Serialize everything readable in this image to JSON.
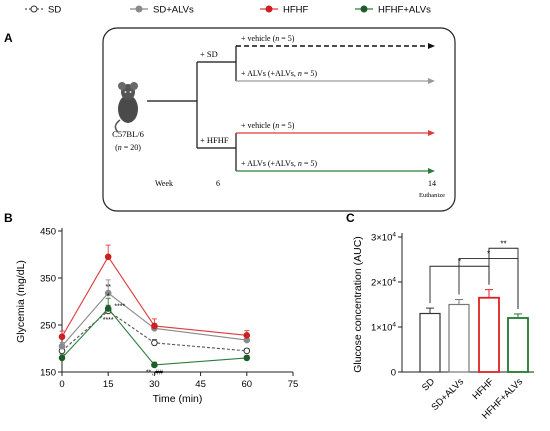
{
  "legend": {
    "items": [
      {
        "label": "SD",
        "line_color": "#555555",
        "marker": "open",
        "dashed": true
      },
      {
        "label": "SD+ALVs",
        "line_color": "#8a8a8a",
        "marker": "#8a8a8a",
        "dashed": false
      },
      {
        "label": "HFHF",
        "line_color": "#e03a3a",
        "marker": "#cc1f1f",
        "dashed": false
      },
      {
        "label": "HFHF+ALVs",
        "line_color": "#2e7d3b",
        "marker": "#1f5c28",
        "dashed": false
      }
    ]
  },
  "panel_a": {
    "label": "A",
    "mouse_label": "C57BL/6",
    "mouse_n_prefix": "(",
    "mouse_n_var": "n",
    "mouse_n_suffix": " = 20)",
    "week_label": "Week",
    "branch_sd": "+ SD",
    "branch_hfhf": "+ HFHF",
    "week_6": "6",
    "week_14": "14",
    "euthanize": "Euthanize",
    "arms": [
      {
        "prefix": "+ vehicle (",
        "var": "n",
        "suffix": " = 5)",
        "color": "#111111",
        "dashed": true
      },
      {
        "prefix": "+ ALVs (+ALVs, ",
        "var": "n",
        "suffix": " = 5)",
        "color": "#9a9a9a",
        "dashed": false
      },
      {
        "prefix": "+ vehicle (",
        "var": "n",
        "suffix": " = 5)",
        "color": "#e03a3a",
        "dashed": false
      },
      {
        "prefix": "+ ALVs (+ALVs, ",
        "var": "n",
        "suffix": " = 5)",
        "color": "#2e7d3b",
        "dashed": false
      }
    ]
  },
  "chart_data": [
    {
      "panel": "B",
      "type": "line",
      "xlabel": "Time (min)",
      "ylabel": "Glycemia (mg/dL)",
      "xlim": [
        0,
        75
      ],
      "ylim": [
        150,
        450
      ],
      "xticks": [
        0,
        15,
        30,
        45,
        60,
        75
      ],
      "yticks": [
        150,
        250,
        350,
        450
      ],
      "x": [
        0,
        15,
        30,
        60
      ],
      "series": [
        {
          "name": "SD",
          "values": [
            195,
            280,
            212,
            195
          ],
          "errors": [
            6,
            12,
            7,
            5
          ],
          "color": "#555555",
          "marker": "open",
          "dashed": true
        },
        {
          "name": "SD+ALVs",
          "values": [
            205,
            318,
            243,
            218
          ],
          "errors": [
            8,
            28,
            10,
            8
          ],
          "color": "#8a8a8a",
          "marker": "#8a8a8a",
          "dashed": false
        },
        {
          "name": "HFHF",
          "values": [
            225,
            395,
            248,
            228
          ],
          "errors": [
            12,
            25,
            15,
            10
          ],
          "color": "#e03a3a",
          "marker": "#cc1f1f",
          "dashed": false
        },
        {
          "name": "HFHF+ALVs",
          "values": [
            180,
            285,
            165,
            180
          ],
          "errors": [
            8,
            22,
            6,
            5
          ],
          "color": "#2e7d3b",
          "marker": "#1f5c28",
          "dashed": false
        }
      ],
      "annotations": [
        {
          "x": 15,
          "y": 327,
          "text": "**",
          "anchor": "middle"
        },
        {
          "x": 15,
          "y": 307,
          "text": "*",
          "anchor": "middle"
        },
        {
          "x": 17,
          "y": 285,
          "text": "****",
          "anchor": "start"
        },
        {
          "x": 15,
          "y": 256,
          "text": "****",
          "anchor": "middle"
        },
        {
          "x": 30,
          "y": 145,
          "text": "**, ##",
          "anchor": "middle"
        }
      ]
    },
    {
      "panel": "C",
      "type": "bar",
      "ylabel": "Glucose concentration (AUC)",
      "ylim": [
        0,
        30000
      ],
      "yticks": [
        {
          "value": 0,
          "base": "0",
          "exp": ""
        },
        {
          "value": 10000,
          "base": "1×10",
          "exp": "4"
        },
        {
          "value": 20000,
          "base": "2×10",
          "exp": "4"
        },
        {
          "value": 30000,
          "base": "3×10",
          "exp": "4"
        }
      ],
      "categories": [
        "SD",
        "SD+ALVs",
        "HFHF",
        "HFHF+ALVs"
      ],
      "values": [
        13000,
        15000,
        16500,
        12000
      ],
      "errors": [
        1200,
        1100,
        1800,
        900
      ],
      "colors": [
        "#333333",
        "#777777",
        "#e02020",
        "#1f7a2e"
      ],
      "significance": [
        {
          "from": 0,
          "to": 2,
          "y": 23500,
          "text": "*"
        },
        {
          "from": 2,
          "to": 3,
          "y": 27500,
          "text": "**"
        },
        {
          "from": 1,
          "to": 3,
          "y": 25200,
          "text": "*"
        }
      ]
    }
  ]
}
